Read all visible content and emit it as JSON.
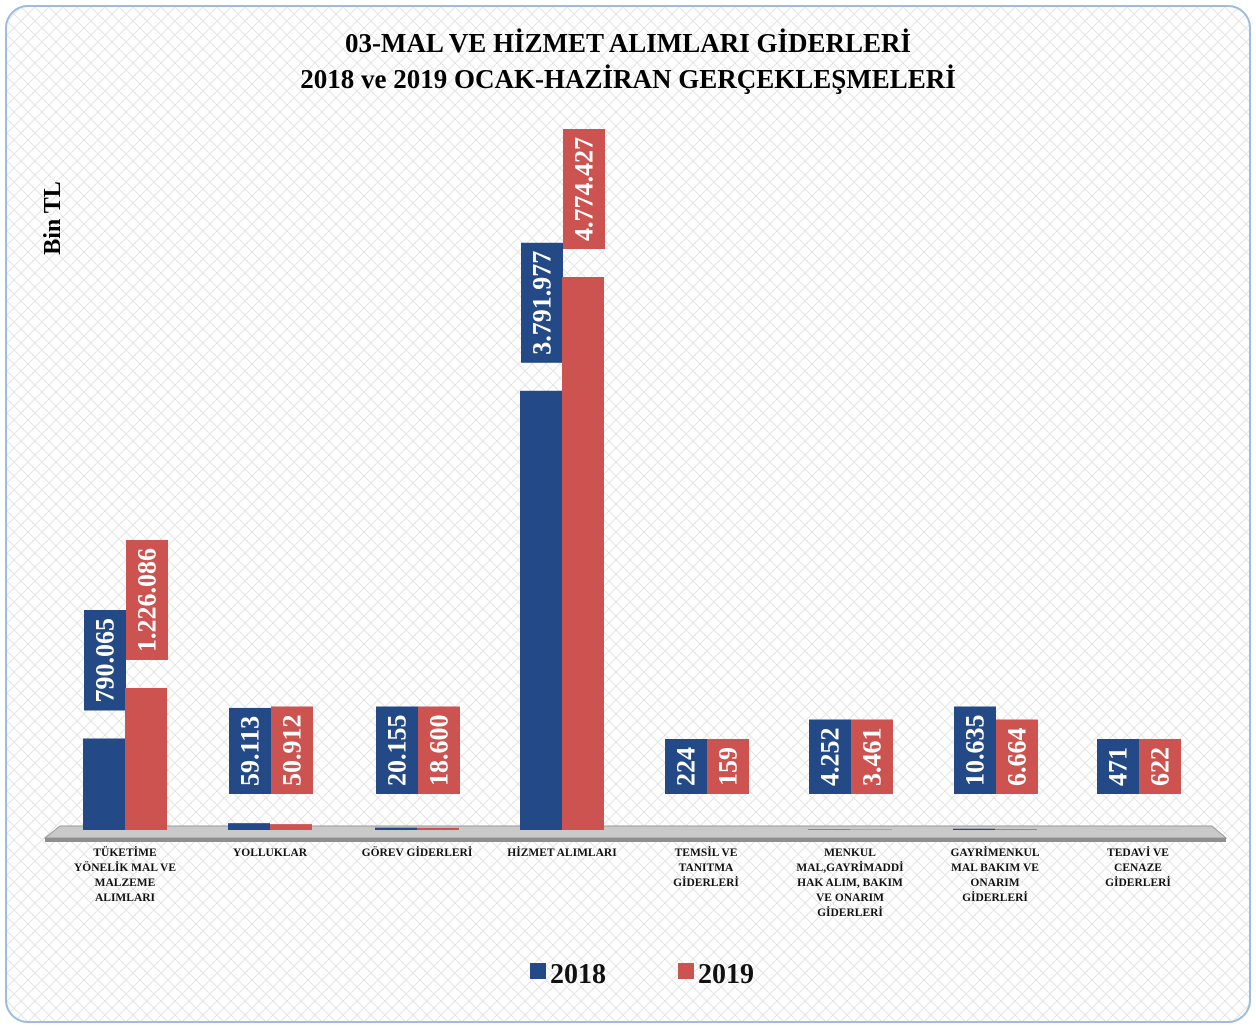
{
  "chart_data": {
    "type": "bar",
    "title": "03-MAL VE HİZMET ALIMLARI GİDERLERİ",
    "subtitle": "2018 ve 2019 OCAK-HAZİRAN GERÇEKLEŞMELERİ",
    "y_label": "Bin TL",
    "categories": [
      "TÜKETİME\nYÖNELİK MAL VE\nMALZEME\nALIMLARI",
      "YOLLUKLAR",
      "GÖREV GİDERLERİ",
      "HİZMET ALIMLARI",
      "TEMSİL VE\nTANITMA\nGİDERLERİ",
      "MENKUL\nMAL,GAYRİMADDİ\nHAK ALIM, BAKIM\nVE ONARIM\nGİDERLERİ",
      "GAYRİMENKUL\nMAL BAKIM VE\nONARIM\nGİDERLERİ",
      "TEDAVİ VE\nCENAZE\nGİDERLERİ"
    ],
    "series": [
      {
        "name": "2018",
        "color": "#234a86",
        "values": [
          790065,
          59113,
          20155,
          3791977,
          224,
          4252,
          10635,
          471
        ],
        "value_labels": [
          "790.065",
          "59.113",
          "20.155",
          "3.791.977",
          "224",
          "4.252",
          "10.635",
          "471"
        ]
      },
      {
        "name": "2019",
        "color": "#cd5350",
        "values": [
          1226086,
          50912,
          18600,
          4774427,
          159,
          3461,
          6664,
          622
        ],
        "value_labels": [
          "1.226.086",
          "50.912",
          "18.600",
          "4.774.427",
          "159",
          "3.461",
          "6.664",
          "622"
        ]
      }
    ]
  }
}
